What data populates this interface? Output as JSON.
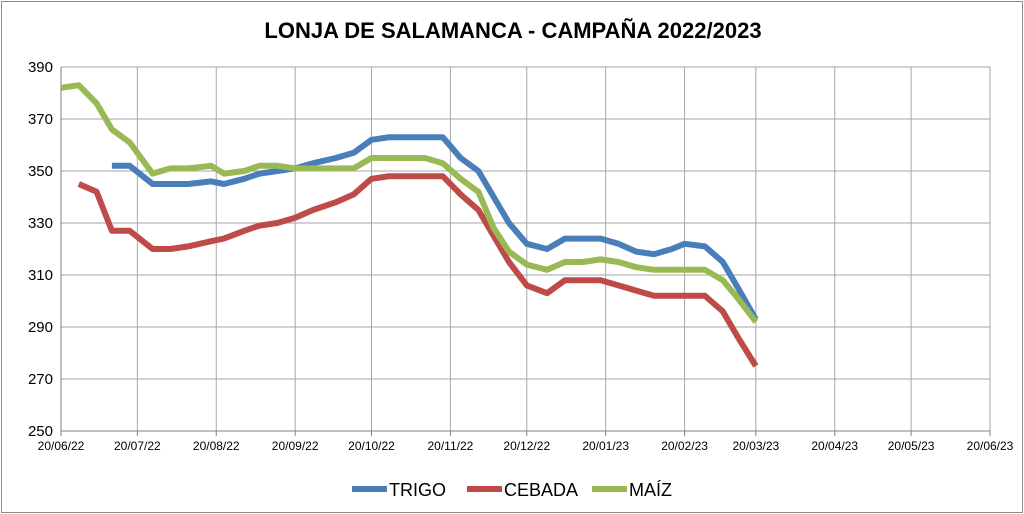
{
  "chart_data": {
    "type": "line",
    "title": "LONJA DE SALAMANCA - CAMPAÑA 2022/2023",
    "xlabel": "",
    "ylabel": "",
    "ylim": [
      250,
      390
    ],
    "yticks": [
      250,
      270,
      290,
      310,
      330,
      350,
      370,
      390
    ],
    "xlim": [
      "2022-06-20",
      "2023-06-20"
    ],
    "xticks": [
      {
        "date": "2022-06-20",
        "label": "20/06/22"
      },
      {
        "date": "2022-07-20",
        "label": "20/07/22"
      },
      {
        "date": "2022-08-20",
        "label": "20/08/22"
      },
      {
        "date": "2022-09-20",
        "label": "20/09/22"
      },
      {
        "date": "2022-10-20",
        "label": "20/10/22"
      },
      {
        "date": "2022-11-20",
        "label": "20/11/22"
      },
      {
        "date": "2022-12-20",
        "label": "20/12/22"
      },
      {
        "date": "2023-01-20",
        "label": "20/01/23"
      },
      {
        "date": "2023-02-20",
        "label": "20/02/23"
      },
      {
        "date": "2023-03-20",
        "label": "20/03/23"
      },
      {
        "date": "2023-04-20",
        "label": "20/04/23"
      },
      {
        "date": "2023-05-20",
        "label": "20/05/23"
      },
      {
        "date": "2023-06-20",
        "label": "20/06/23"
      }
    ],
    "grid": true,
    "legend_position": "bottom",
    "series": [
      {
        "name": "TRIGO",
        "color": "#4a7ebb",
        "points": [
          [
            "2022-07-10",
            352
          ],
          [
            "2022-07-17",
            352
          ],
          [
            "2022-07-26",
            345
          ],
          [
            "2022-08-02",
            345
          ],
          [
            "2022-08-09",
            345
          ],
          [
            "2022-08-18",
            346
          ],
          [
            "2022-08-23",
            345
          ],
          [
            "2022-08-31",
            347
          ],
          [
            "2022-09-06",
            349
          ],
          [
            "2022-09-13",
            350
          ],
          [
            "2022-09-20",
            351
          ],
          [
            "2022-09-27",
            353
          ],
          [
            "2022-10-06",
            355
          ],
          [
            "2022-10-13",
            357
          ],
          [
            "2022-10-20",
            362
          ],
          [
            "2022-10-27",
            363
          ],
          [
            "2022-11-03",
            363
          ],
          [
            "2022-11-10",
            363
          ],
          [
            "2022-11-17",
            363
          ],
          [
            "2022-11-24",
            355
          ],
          [
            "2022-12-01",
            350
          ],
          [
            "2022-12-07",
            340
          ],
          [
            "2022-12-13",
            330
          ],
          [
            "2022-12-20",
            322
          ],
          [
            "2022-12-28",
            320
          ],
          [
            "2023-01-04",
            324
          ],
          [
            "2023-01-11",
            324
          ],
          [
            "2023-01-18",
            324
          ],
          [
            "2023-01-25",
            322
          ],
          [
            "2023-02-01",
            319
          ],
          [
            "2023-02-08",
            318
          ],
          [
            "2023-02-15",
            320
          ],
          [
            "2023-02-20",
            322
          ],
          [
            "2023-02-28",
            321
          ],
          [
            "2023-03-07",
            315
          ],
          [
            "2023-03-13",
            305
          ],
          [
            "2023-03-20",
            293
          ]
        ]
      },
      {
        "name": "CEBADA",
        "color": "#be4b48",
        "points": [
          [
            "2022-06-27",
            345
          ],
          [
            "2022-07-04",
            342
          ],
          [
            "2022-07-10",
            327
          ],
          [
            "2022-07-17",
            327
          ],
          [
            "2022-07-26",
            320
          ],
          [
            "2022-08-02",
            320
          ],
          [
            "2022-08-09",
            321
          ],
          [
            "2022-08-18",
            323
          ],
          [
            "2022-08-23",
            324
          ],
          [
            "2022-08-31",
            327
          ],
          [
            "2022-09-06",
            329
          ],
          [
            "2022-09-13",
            330
          ],
          [
            "2022-09-20",
            332
          ],
          [
            "2022-09-27",
            335
          ],
          [
            "2022-10-06",
            338
          ],
          [
            "2022-10-13",
            341
          ],
          [
            "2022-10-20",
            347
          ],
          [
            "2022-10-27",
            348
          ],
          [
            "2022-11-03",
            348
          ],
          [
            "2022-11-10",
            348
          ],
          [
            "2022-11-17",
            348
          ],
          [
            "2022-11-24",
            341
          ],
          [
            "2022-12-01",
            335
          ],
          [
            "2022-12-07",
            325
          ],
          [
            "2022-12-13",
            315
          ],
          [
            "2022-12-20",
            306
          ],
          [
            "2022-12-28",
            303
          ],
          [
            "2023-01-04",
            308
          ],
          [
            "2023-01-11",
            308
          ],
          [
            "2023-01-18",
            308
          ],
          [
            "2023-01-25",
            306
          ],
          [
            "2023-02-01",
            304
          ],
          [
            "2023-02-08",
            302
          ],
          [
            "2023-02-15",
            302
          ],
          [
            "2023-02-20",
            302
          ],
          [
            "2023-02-28",
            302
          ],
          [
            "2023-03-07",
            296
          ],
          [
            "2023-03-13",
            286
          ],
          [
            "2023-03-20",
            275
          ]
        ]
      },
      {
        "name": "MAÍZ",
        "color": "#98b954",
        "points": [
          [
            "2022-06-20",
            382
          ],
          [
            "2022-06-27",
            383
          ],
          [
            "2022-07-04",
            376
          ],
          [
            "2022-07-10",
            366
          ],
          [
            "2022-07-17",
            361
          ],
          [
            "2022-07-26",
            349
          ],
          [
            "2022-08-02",
            351
          ],
          [
            "2022-08-09",
            351
          ],
          [
            "2022-08-18",
            352
          ],
          [
            "2022-08-23",
            349
          ],
          [
            "2022-08-31",
            350
          ],
          [
            "2022-09-06",
            352
          ],
          [
            "2022-09-13",
            352
          ],
          [
            "2022-09-20",
            351
          ],
          [
            "2022-09-27",
            351
          ],
          [
            "2022-10-06",
            351
          ],
          [
            "2022-10-13",
            351
          ],
          [
            "2022-10-20",
            355
          ],
          [
            "2022-10-27",
            355
          ],
          [
            "2022-11-03",
            355
          ],
          [
            "2022-11-10",
            355
          ],
          [
            "2022-11-17",
            353
          ],
          [
            "2022-11-24",
            347
          ],
          [
            "2022-12-01",
            342
          ],
          [
            "2022-12-07",
            328
          ],
          [
            "2022-12-13",
            319
          ],
          [
            "2022-12-20",
            314
          ],
          [
            "2022-12-28",
            312
          ],
          [
            "2023-01-04",
            315
          ],
          [
            "2023-01-11",
            315
          ],
          [
            "2023-01-18",
            316
          ],
          [
            "2023-01-25",
            315
          ],
          [
            "2023-02-01",
            313
          ],
          [
            "2023-02-08",
            312
          ],
          [
            "2023-02-15",
            312
          ],
          [
            "2023-02-20",
            312
          ],
          [
            "2023-02-28",
            312
          ],
          [
            "2023-03-07",
            308
          ],
          [
            "2023-03-13",
            301
          ],
          [
            "2023-03-20",
            292
          ]
        ]
      }
    ]
  }
}
